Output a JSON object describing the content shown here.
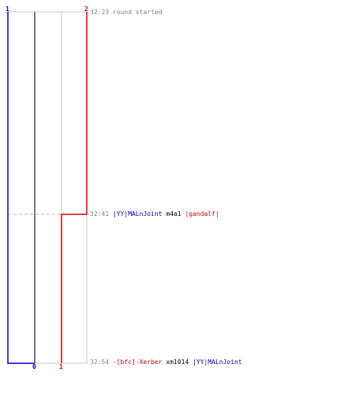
{
  "colors": {
    "player1": "#0000cc",
    "player2": "#dd0000",
    "neutral": "#999999",
    "grid": "#c8c8c8",
    "dash": "#bbbbbb",
    "text": "#808080"
  },
  "top_labels": [
    "1",
    "2"
  ],
  "bottom_labels": [
    "0",
    "1"
  ],
  "events": [
    {
      "time": "32:23",
      "message": "round started",
      "parts": []
    },
    {
      "time": "32:41",
      "message": "",
      "parts": [
        {
          "text": "|YY|MALnJoint",
          "color": "#0000aa"
        },
        {
          "text": " m4a1 ",
          "color": "#000000"
        },
        {
          "text": "|gandalf|",
          "color": "#dd0000"
        }
      ]
    },
    {
      "time": "32:54",
      "message": "",
      "parts": [
        {
          "text": "-[bfc]-Xerber",
          "color": "#cc0000"
        },
        {
          "text": " xm1014 ",
          "color": "#000000"
        },
        {
          "text": "|YY|MALnJoint",
          "color": "#0000aa"
        }
      ]
    }
  ]
}
